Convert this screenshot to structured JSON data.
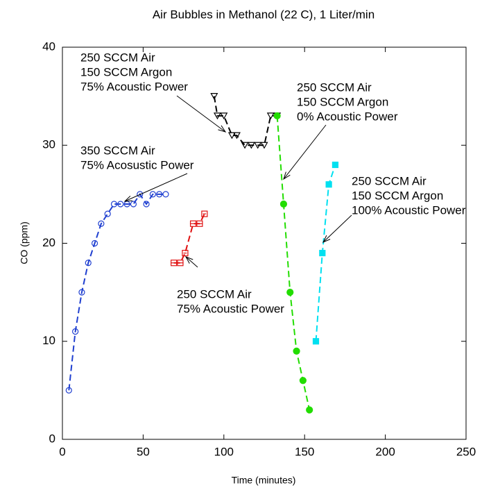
{
  "chart_data": {
    "type": "line",
    "title": "Air Bubbles in Methanol (22 C), 1 Liter/min",
    "x_label": "Time (minutes)",
    "y_label": "CO (ppm)",
    "xlim": [
      0,
      250
    ],
    "ylim": [
      0,
      40
    ],
    "xticks": [
      0,
      50,
      100,
      150,
      200,
      250
    ],
    "yticks": [
      0,
      10,
      20,
      30,
      40
    ],
    "series": [
      {
        "name": "350 SCCM Air 75% Acosustic Power",
        "color": "#1f3fd0",
        "marker": "circle",
        "dash": true,
        "x": [
          4,
          8,
          12,
          16,
          20,
          24,
          28,
          32,
          36,
          40,
          44,
          48,
          52,
          56,
          60,
          64
        ],
        "values": [
          5,
          11,
          15,
          18,
          20,
          22,
          23,
          24,
          24,
          24,
          24,
          25,
          24,
          25,
          25,
          25
        ]
      },
      {
        "name": "250 SCCM Air 75% Acoustic Power",
        "color": "#e01010",
        "marker": "square",
        "dash": true,
        "x": [
          69,
          73,
          76,
          81,
          85,
          88
        ],
        "values": [
          18,
          18,
          19,
          22,
          22,
          23
        ],
        "xerr": [
          2,
          2,
          1,
          2,
          2,
          1
        ]
      },
      {
        "name": "250 SCCM Air 150 SCCM Argon 75% Acoustic Power",
        "color": "#000000",
        "marker": "triangle",
        "dash": true,
        "x": [
          94,
          96,
          100,
          105,
          108,
          113,
          117,
          121,
          125,
          129,
          133
        ],
        "values": [
          35,
          33,
          33,
          31,
          31,
          30,
          30,
          30,
          30,
          33,
          33
        ]
      },
      {
        "name": "250 SCCM Air 150 SCCM Argon 0% Acoustic Power",
        "color": "#22dd00",
        "marker": "dot",
        "dash": true,
        "x": [
          133,
          137,
          141,
          145,
          149,
          153
        ],
        "values": [
          33,
          24,
          15,
          9,
          6,
          3
        ]
      },
      {
        "name": "250 SCCM Air 150 SCCM Argon 100% Acoustic Power",
        "color": "#00e0f0",
        "marker": "filled-square",
        "dash": true,
        "x": [
          157,
          161,
          165,
          169
        ],
        "values": [
          10,
          19,
          26,
          28
        ]
      }
    ],
    "annotations": [
      {
        "lines": [
          "350 SCCM Air",
          "75% Acosustic Power"
        ]
      },
      {
        "lines": [
          "250 SCCM Air",
          "75% Acoustic Power"
        ]
      },
      {
        "lines": [
          "250 SCCM Air",
          "150 SCCM Argon",
          "75% Acoustic Power"
        ]
      },
      {
        "lines": [
          "250 SCCM Air",
          "150 SCCM Argon",
          "0% Acoustic Power"
        ]
      },
      {
        "lines": [
          "250 SCCM Air",
          "150 SCCM Argon",
          "100% Acoustic Power"
        ]
      }
    ]
  }
}
